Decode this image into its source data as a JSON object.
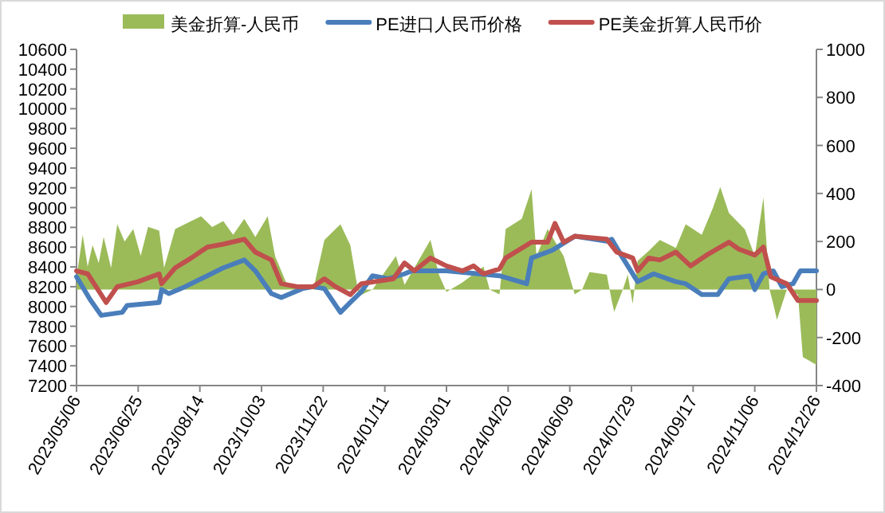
{
  "chart_data": {
    "type": "line",
    "xlim": [
      "2023-05-06",
      "2024-12-26"
    ],
    "xticks": [
      {
        "value": "2023-05-06",
        "label": "2023/05/06"
      },
      {
        "value": "2023-06-25",
        "label": "2023/06/25"
      },
      {
        "value": "2023-08-14",
        "label": "2023/08/14"
      },
      {
        "value": "2023-10-03",
        "label": "2023/10/03"
      },
      {
        "value": "2023-11-22",
        "label": "2023/11/22"
      },
      {
        "value": "2024-01-11",
        "label": "2024/01/11"
      },
      {
        "value": "2024-03-01",
        "label": "2024/03/01"
      },
      {
        "value": "2024-04-20",
        "label": "2024/04/20"
      },
      {
        "value": "2024-06-09",
        "label": "2024/06/09"
      },
      {
        "value": "2024-07-29",
        "label": "2024/07/29"
      },
      {
        "value": "2024-09-17",
        "label": "2024/09/17"
      },
      {
        "value": "2024-11-06",
        "label": "2024/11/06"
      },
      {
        "value": "2024-12-26",
        "label": "2024/12/26"
      }
    ],
    "ylim": [
      7200,
      10600
    ],
    "yticks": [
      7200,
      7400,
      7600,
      7800,
      8000,
      8200,
      8400,
      8600,
      8800,
      9000,
      9200,
      9400,
      9600,
      9800,
      10000,
      10200,
      10400,
      10600
    ],
    "y2lim": [
      -400,
      1000
    ],
    "y2ticks": [
      -400,
      -200,
      0,
      200,
      400,
      600,
      800,
      1000
    ],
    "legend": "top",
    "series": [
      {
        "name": "美金折算-人民币",
        "type": "area",
        "axis": "y2",
        "color": "#9bbb59",
        "x": [
          "2023-05-06",
          "2023-05-11",
          "2023-05-15",
          "2023-05-19",
          "2023-05-24",
          "2023-05-28",
          "2023-06-03",
          "2023-06-08",
          "2023-06-14",
          "2023-06-21",
          "2023-06-27",
          "2023-07-03",
          "2023-07-12",
          "2023-07-16",
          "2023-07-25",
          "2023-08-07",
          "2023-08-15",
          "2023-08-24",
          "2023-09-02",
          "2023-09-10",
          "2023-09-19",
          "2023-09-28",
          "2023-10-08",
          "2023-10-14",
          "2023-10-23",
          "2023-11-01",
          "2023-11-14",
          "2023-11-23",
          "2023-12-06",
          "2023-12-14",
          "2023-12-21",
          "2024-01-01",
          "2024-01-20",
          "2024-01-27",
          "2024-02-17",
          "2024-02-24",
          "2024-03-01",
          "2024-03-14",
          "2024-03-31",
          "2024-04-05",
          "2024-04-13",
          "2024-04-18",
          "2024-05-01",
          "2024-05-09",
          "2024-05-13",
          "2024-05-22",
          "2024-06-04",
          "2024-06-13",
          "2024-06-19",
          "2024-06-25",
          "2024-07-09",
          "2024-07-13",
          "2024-07-15",
          "2024-07-22",
          "2024-07-26",
          "2024-07-30",
          "2024-08-03",
          "2024-08-12",
          "2024-08-21",
          "2024-09-03",
          "2024-09-11",
          "2024-09-24",
          "2024-10-03",
          "2024-10-09",
          "2024-10-16",
          "2024-10-29",
          "2024-11-06",
          "2024-11-13",
          "2024-11-18",
          "2024-11-21",
          "2024-11-24",
          "2024-12-02",
          "2024-12-11",
          "2024-12-15",
          "2024-12-26"
        ],
        "values": [
          50,
          228,
          95,
          185,
          110,
          219,
          90,
          272,
          200,
          252,
          140,
          261,
          245,
          90,
          252,
          285,
          305,
          260,
          285,
          228,
          294,
          219,
          305,
          139,
          29,
          0,
          0,
          206,
          272,
          185,
          -27,
          0,
          139,
          20,
          206,
          60,
          -10,
          30,
          95,
          0,
          -20,
          252,
          294,
          418,
          139,
          252,
          139,
          -20,
          0,
          73,
          62,
          -47,
          -93,
          0,
          62,
          -60,
          119,
          161,
          206,
          173,
          272,
          228,
          339,
          427,
          319,
          250,
          139,
          383,
          0,
          -60,
          -126,
          0,
          -20,
          -281,
          -314
        ]
      },
      {
        "name": "PE进口人民币价格",
        "color": "#4a7ebb",
        "x": [
          "2023-05-06",
          "2023-05-17",
          "2023-05-26",
          "2023-06-12",
          "2023-06-16",
          "2023-07-12",
          "2023-07-14",
          "2023-07-20",
          "2023-08-02",
          "2023-08-20",
          "2023-09-02",
          "2023-09-19",
          "2023-09-28",
          "2023-10-11",
          "2023-10-19",
          "2023-11-05",
          "2023-11-14",
          "2023-11-23",
          "2023-12-06",
          "2023-12-14",
          "2023-12-23",
          "2024-01-01",
          "2024-01-14",
          "2024-01-27",
          "2024-02-02",
          "2024-03-01",
          "2024-03-27",
          "2024-04-13",
          "2024-05-05",
          "2024-05-09",
          "2024-05-26",
          "2024-06-13",
          "2024-07-09",
          "2024-07-13",
          "2024-07-22",
          "2024-08-03",
          "2024-08-16",
          "2024-09-03",
          "2024-09-11",
          "2024-09-24",
          "2024-10-07",
          "2024-10-16",
          "2024-11-02",
          "2024-11-06",
          "2024-11-13",
          "2024-11-21",
          "2024-11-28",
          "2024-12-07",
          "2024-12-13",
          "2024-12-26"
        ],
        "values": [
          8300,
          8070,
          7910,
          7940,
          8010,
          8040,
          8170,
          8130,
          8200,
          8310,
          8390,
          8470,
          8360,
          8130,
          8090,
          8180,
          8200,
          8180,
          7940,
          8040,
          8150,
          8310,
          8280,
          8330,
          8360,
          8360,
          8330,
          8310,
          8230,
          8490,
          8570,
          8710,
          8660,
          8680,
          8490,
          8250,
          8330,
          8250,
          8230,
          8120,
          8120,
          8280,
          8310,
          8170,
          8330,
          8360,
          8200,
          8230,
          8360,
          8360
        ]
      },
      {
        "name": "PE美金折算人民币价",
        "color": "#c0504d",
        "x": [
          "2023-05-06",
          "2023-05-15",
          "2023-05-30",
          "2023-06-08",
          "2023-06-25",
          "2023-07-12",
          "2023-07-14",
          "2023-07-25",
          "2023-08-07",
          "2023-08-20",
          "2023-09-02",
          "2023-09-19",
          "2023-09-28",
          "2023-10-11",
          "2023-10-19",
          "2023-11-01",
          "2023-11-14",
          "2023-11-23",
          "2023-12-02",
          "2023-12-14",
          "2023-12-23",
          "2024-01-18",
          "2024-01-27",
          "2024-02-04",
          "2024-02-17",
          "2024-03-01",
          "2024-03-14",
          "2024-03-23",
          "2024-03-31",
          "2024-04-13",
          "2024-04-18",
          "2024-05-09",
          "2024-05-22",
          "2024-05-28",
          "2024-06-04",
          "2024-06-13",
          "2024-07-09",
          "2024-07-17",
          "2024-07-30",
          "2024-08-03",
          "2024-08-12",
          "2024-08-21",
          "2024-09-03",
          "2024-09-15",
          "2024-09-28",
          "2024-10-16",
          "2024-10-24",
          "2024-11-06",
          "2024-11-13",
          "2024-11-19",
          "2024-12-02",
          "2024-12-11",
          "2024-12-26"
        ],
        "values": [
          8360,
          8330,
          8040,
          8200,
          8250,
          8330,
          8230,
          8390,
          8490,
          8600,
          8630,
          8680,
          8550,
          8470,
          8230,
          8200,
          8200,
          8280,
          8200,
          8120,
          8230,
          8280,
          8440,
          8360,
          8490,
          8410,
          8360,
          8410,
          8330,
          8380,
          8490,
          8650,
          8650,
          8840,
          8650,
          8710,
          8680,
          8550,
          8490,
          8360,
          8490,
          8470,
          8550,
          8410,
          8520,
          8650,
          8580,
          8520,
          8600,
          8300,
          8230,
          8060,
          8060
        ]
      }
    ]
  }
}
